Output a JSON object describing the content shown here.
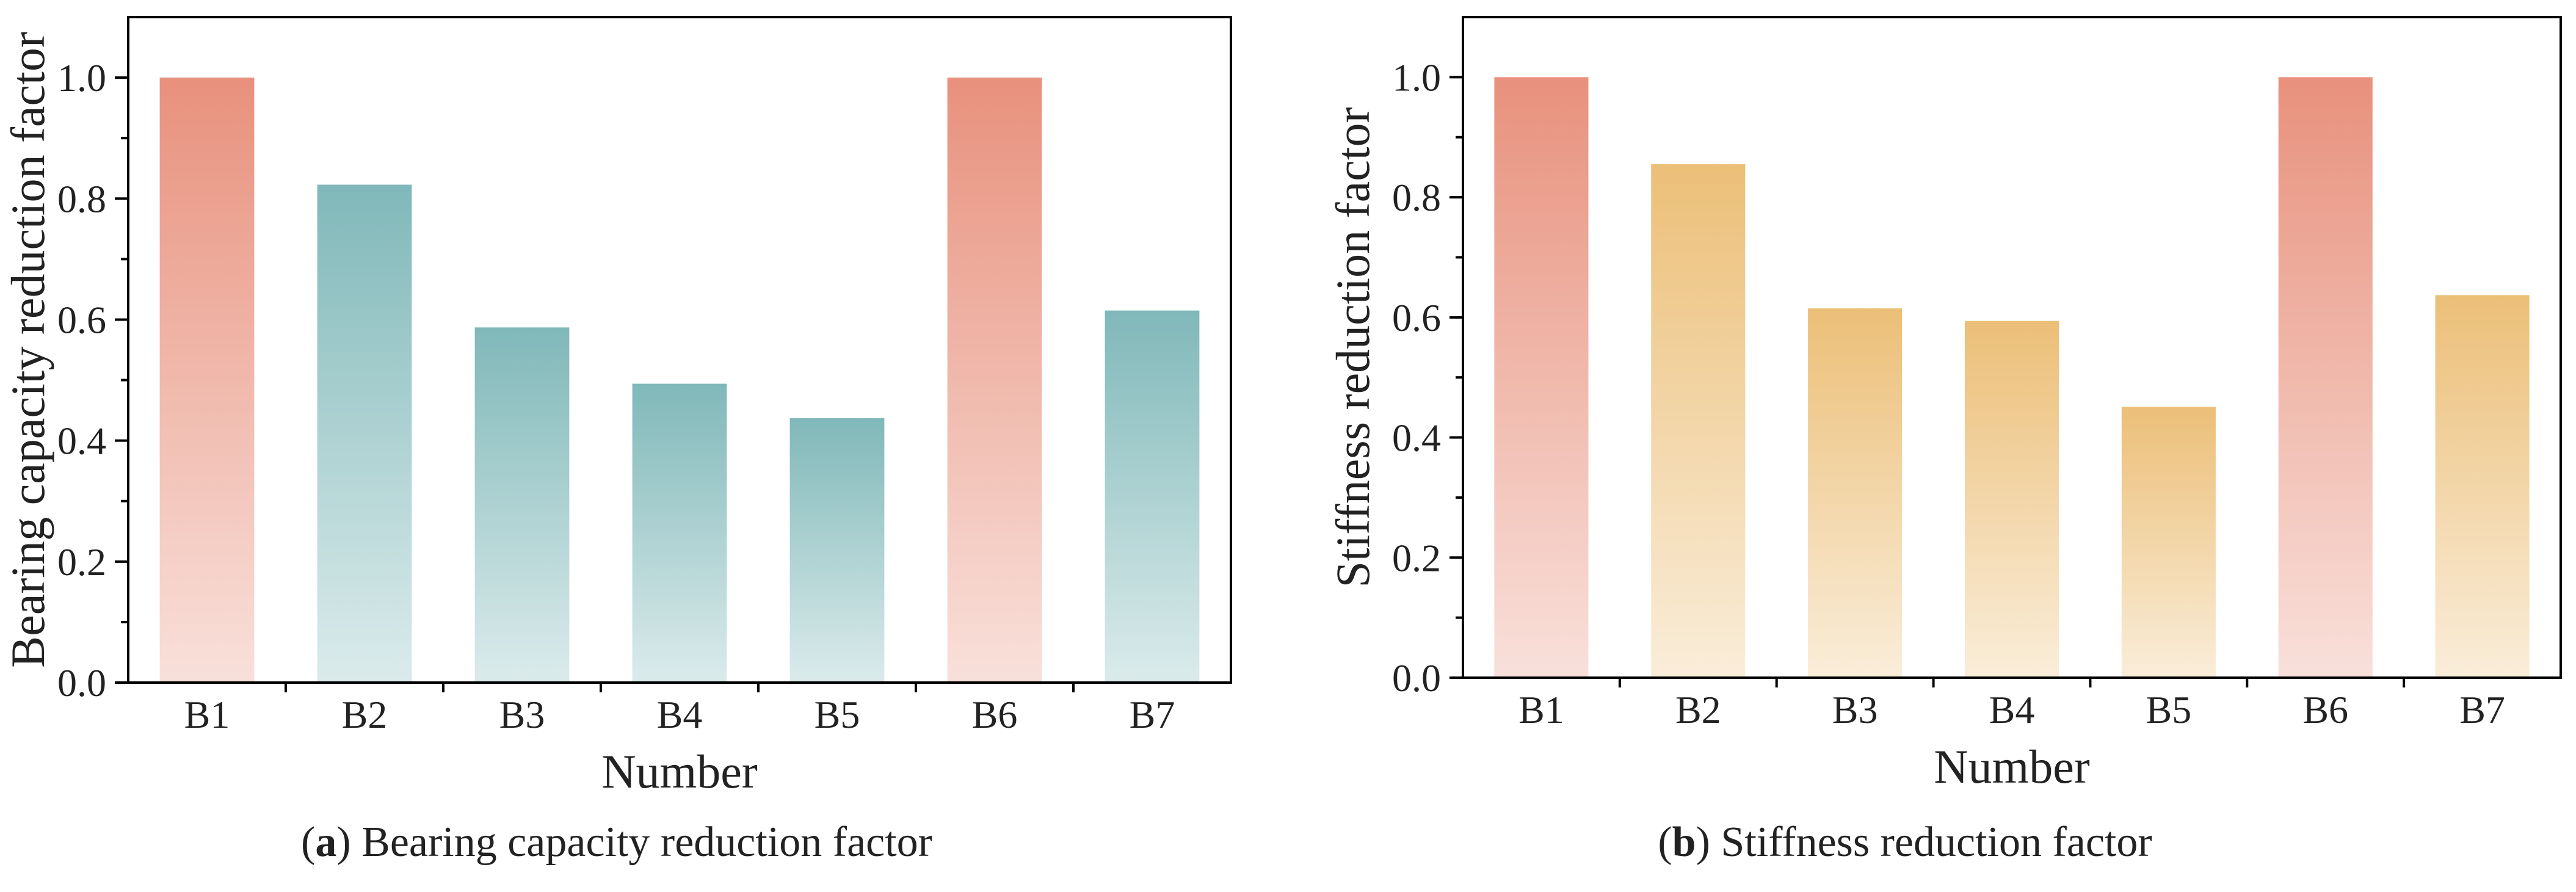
{
  "chart_data": [
    {
      "type": "bar",
      "caption_letter": "a",
      "caption_text": "Bearing capacity reduction factor",
      "categories": [
        "B1",
        "B2",
        "B3",
        "B4",
        "B5",
        "B6",
        "B7"
      ],
      "values": [
        1.0,
        0.823,
        0.587,
        0.494,
        0.437,
        1.0,
        0.615
      ],
      "bar_colors": [
        "#e8917d",
        "#80b8b9",
        "#80b8b9",
        "#80b8b9",
        "#80b8b9",
        "#e8917d",
        "#80b8b9"
      ],
      "xlabel": "Number",
      "ylabel": "Bearing capacity reduction factor",
      "ylim": [
        0,
        1.1
      ],
      "yticks": [
        "0.0",
        "0.2",
        "0.4",
        "0.6",
        "0.8",
        "1.0"
      ],
      "ytick_values": [
        0,
        0.2,
        0.4,
        0.6,
        0.8,
        1.0
      ],
      "grid": false
    },
    {
      "type": "bar",
      "caption_letter": "b",
      "caption_text": "Stiffness reduction factor",
      "categories": [
        "B1",
        "B2",
        "B3",
        "B4",
        "B5",
        "B6",
        "B7"
      ],
      "values": [
        1.0,
        0.855,
        0.615,
        0.594,
        0.451,
        1.0,
        0.637
      ],
      "bar_colors": [
        "#e8917d",
        "#ecbf78",
        "#ecbf78",
        "#ecbf78",
        "#ecbf78",
        "#e8917d",
        "#ecbf78"
      ],
      "xlabel": "Number",
      "ylabel": "Stiffness reduction factor",
      "ylim": [
        0,
        1.1
      ],
      "yticks": [
        "0.0",
        "0.2",
        "0.4",
        "0.6",
        "0.8",
        "1.0"
      ],
      "ytick_values": [
        0,
        0.2,
        0.4,
        0.6,
        0.8,
        1.0
      ],
      "grid": false
    }
  ]
}
